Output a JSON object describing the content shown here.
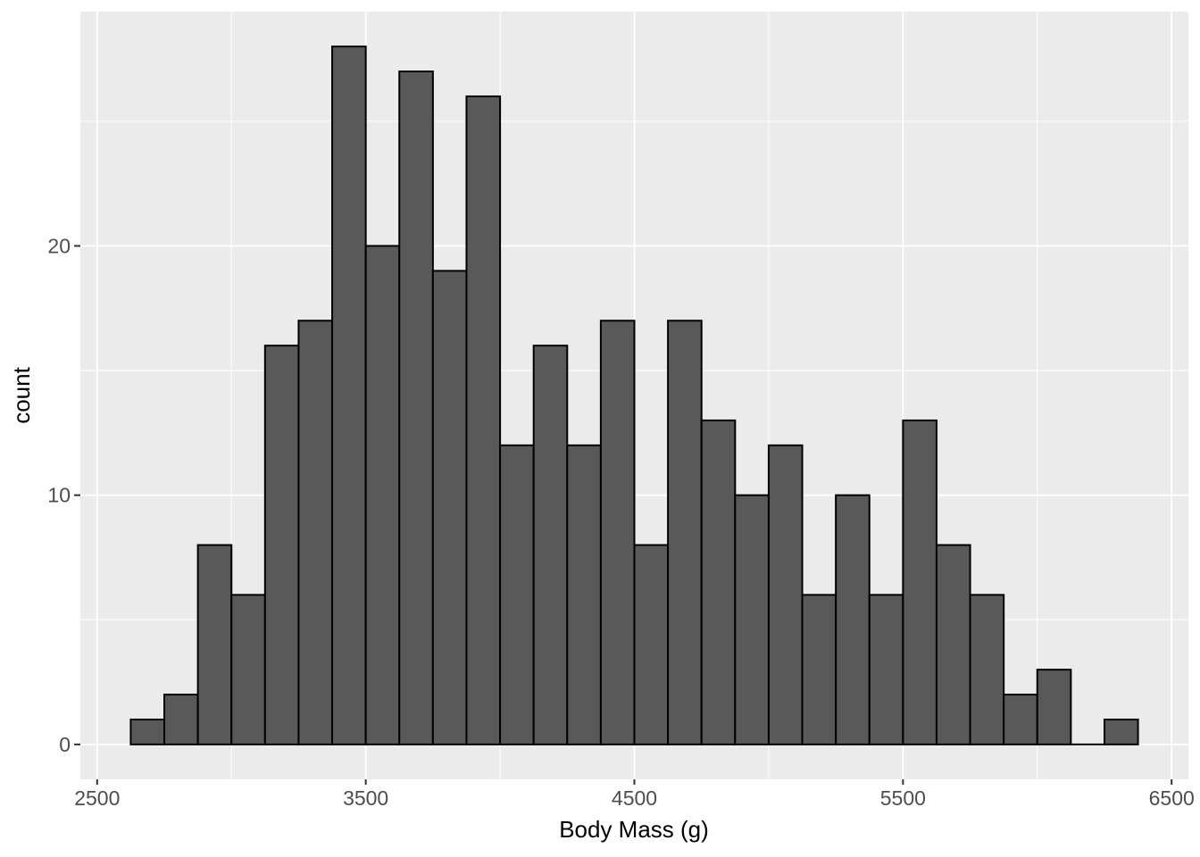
{
  "chart_data": {
    "type": "histogram",
    "title": "",
    "xlabel": "Body Mass (g)",
    "ylabel": "count",
    "bin_start": 2625,
    "bin_width": 125,
    "bin_edges": [
      2625,
      2750,
      2875,
      3000,
      3125,
      3250,
      3375,
      3500,
      3625,
      3750,
      3875,
      4000,
      4125,
      4250,
      4375,
      4500,
      4625,
      4750,
      4875,
      5000,
      5125,
      5250,
      5375,
      5500,
      5625,
      5750,
      5875,
      6000,
      6125,
      6250,
      6375
    ],
    "counts": [
      1,
      2,
      8,
      6,
      16,
      17,
      28,
      20,
      27,
      19,
      26,
      12,
      16,
      12,
      17,
      8,
      17,
      13,
      10,
      12,
      6,
      10,
      6,
      13,
      8,
      6,
      2,
      3,
      0,
      1
    ],
    "total_count": 342,
    "x_ticks": [
      2500,
      3500,
      4500,
      5500,
      6500
    ],
    "x_minor_ticks": [
      3000,
      4000,
      5000,
      6000
    ],
    "y_ticks": [
      0,
      10,
      20
    ],
    "y_minor_ticks": [
      5,
      15,
      25
    ],
    "x_domain": [
      2437.5,
      6562.5
    ],
    "y_domain": [
      -1.4,
      29.4
    ],
    "grid": "on",
    "legend": "none",
    "colors": {
      "panel_bg": "#EBEBEB",
      "grid": "#FFFFFF",
      "bar_fill": "#595959",
      "bar_stroke": "#000000",
      "tick_label": "#4D4D4D",
      "tick_mark": "#333333",
      "axis_title": "#000000",
      "page_bg": "#FFFFFF"
    }
  }
}
